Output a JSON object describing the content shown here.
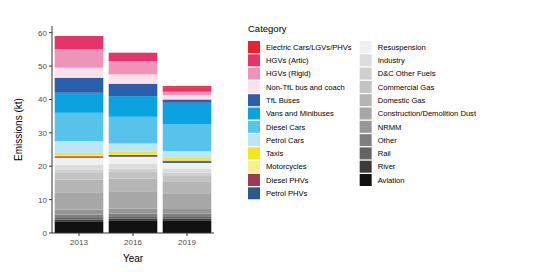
{
  "chart_data": {
    "type": "bar",
    "stacked": true,
    "grid": false,
    "legend": "right",
    "legend_title": "Category",
    "x_label": "Year",
    "y_label": "Emissions (kt)",
    "categories": [
      "2013",
      "2016",
      "2019"
    ],
    "ylim": [
      0,
      62
    ],
    "yticks": [
      0,
      10,
      20,
      30,
      40,
      50,
      60
    ],
    "series": [
      {
        "name": "Electric Cars/LGVs/PHVs",
        "color": "#e8232b",
        "values": [
          0,
          0,
          0.3
        ]
      },
      {
        "name": "HGVs (Artic)",
        "color": "#e5346c",
        "values": [
          4,
          2.5,
          1.4
        ]
      },
      {
        "name": "HGVs (Rigid)",
        "color": "#ee93b9",
        "values": [
          5.5,
          4,
          1
        ]
      },
      {
        "name": "Non-TfL bus and coach",
        "color": "#fbe1eb",
        "values": [
          3,
          2.8,
          1.3
        ]
      },
      {
        "name": "TfL Buses",
        "color": "#2c5fab",
        "values": [
          4.5,
          3.7,
          1
        ]
      },
      {
        "name": "Vans and Minibuses",
        "color": "#0aa3e0",
        "values": [
          6,
          6.2,
          6.5
        ]
      },
      {
        "name": "Diesel Cars",
        "color": "#57c2ea",
        "values": [
          8.5,
          8,
          8
        ]
      },
      {
        "name": "Petrol Cars",
        "color": "#bce5f6",
        "values": [
          3.5,
          2.5,
          2
        ]
      },
      {
        "name": "Taxis",
        "color": "#f5e51c",
        "values": [
          0.8,
          0.7,
          0.6
        ]
      },
      {
        "name": "Motorcycles",
        "color": "#f8f08e",
        "values": [
          0.2,
          0.2,
          0.2
        ]
      },
      {
        "name": "Diesel PHVs",
        "color": "#9d3a56",
        "values": [
          0.3,
          0.4,
          0.4
        ]
      },
      {
        "name": "Petrol PHVs",
        "color": "#2b5a8a",
        "values": [
          0.2,
          0.2,
          0.3
        ]
      },
      {
        "name": "Resuspension",
        "color": "#f0f0f0",
        "values": [
          2,
          2,
          1.7
        ]
      },
      {
        "name": "Industry",
        "color": "#dcdcdc",
        "values": [
          1.5,
          1.5,
          1.2
        ]
      },
      {
        "name": "D&C Other Fuels",
        "color": "#cfcfcf",
        "values": [
          1,
          1,
          0.8
        ]
      },
      {
        "name": "Commercial Gas",
        "color": "#c3c3c3",
        "values": [
          2,
          2,
          1.8
        ]
      },
      {
        "name": "Domestic Gas",
        "color": "#b5b5b5",
        "values": [
          4,
          4,
          3.8
        ]
      },
      {
        "name": "Construction/Demolition Dust",
        "color": "#a7a7a7",
        "values": [
          5,
          5,
          4.5
        ]
      },
      {
        "name": "NRMM",
        "color": "#969696",
        "values": [
          1.5,
          1.5,
          1.4
        ]
      },
      {
        "name": "Other",
        "color": "#7f7f7f",
        "values": [
          1,
          1,
          1
        ]
      },
      {
        "name": "Rail",
        "color": "#636363",
        "values": [
          0.5,
          0.5,
          0.5
        ]
      },
      {
        "name": "River",
        "color": "#3b3b3b",
        "values": [
          0.5,
          0.5,
          0.5
        ]
      },
      {
        "name": "Aviation",
        "color": "#111111",
        "values": [
          3.5,
          3.8,
          3.8
        ]
      }
    ]
  }
}
